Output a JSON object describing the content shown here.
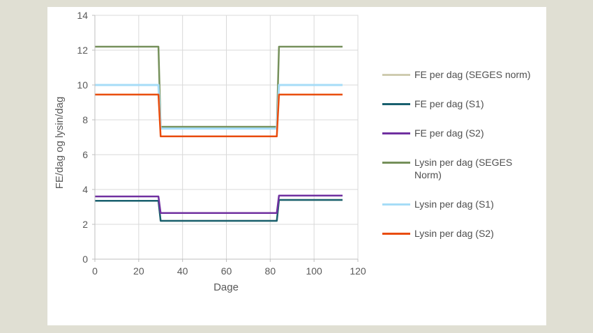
{
  "figure": {
    "background_color": "#e0dfd3",
    "panel_color": "#ffffff",
    "grid_color": "#d9d9d9",
    "axis_line_color": "#bfbfbf",
    "tick_text_color": "#595959",
    "legend_text_color": "#4f4f4f"
  },
  "chart_data": {
    "type": "line",
    "line_style": "step",
    "title": "",
    "xlabel": "Dage",
    "ylabel": "FE/dag og lysin/dag",
    "xlim": [
      0,
      120
    ],
    "ylim": [
      0,
      14
    ],
    "x_ticks": [
      0,
      20,
      40,
      60,
      80,
      100,
      120
    ],
    "y_ticks": [
      0,
      2,
      4,
      6,
      8,
      10,
      12,
      14
    ],
    "grid": true,
    "legend_position": "right",
    "x": [
      0,
      29,
      30,
      83,
      84,
      113
    ],
    "series": [
      {
        "name": "FE per dag (SEGES norm)",
        "color": "#cfccb0",
        "stroke_width": 2.5,
        "values": [
          3.35,
          3.35,
          2.2,
          2.2,
          3.4,
          3.4
        ],
        "note": "not visible in plot - coincides with and is drawn beneath FE per dag (S1)"
      },
      {
        "name": "FE per dag (S1)",
        "color": "#19606e",
        "stroke_width": 2.5,
        "values": [
          3.35,
          3.35,
          2.2,
          2.2,
          3.4,
          3.4
        ]
      },
      {
        "name": "FE per dag (S2)",
        "color": "#7030a0",
        "stroke_width": 2.5,
        "values": [
          3.6,
          3.6,
          2.65,
          2.65,
          3.65,
          3.65
        ]
      },
      {
        "name": "Lysin per dag (SEGES Norm)",
        "color": "#75905a",
        "stroke_width": 2.5,
        "values": [
          12.2,
          12.2,
          7.6,
          7.6,
          12.2,
          12.2
        ]
      },
      {
        "name": "Lysin per dag (S1)",
        "color": "#a6dcf7",
        "stroke_width": 3,
        "values": [
          10.0,
          10.0,
          7.5,
          7.5,
          10.0,
          10.0
        ]
      },
      {
        "name": "Lysin per dag (S2)",
        "color": "#e94c0c",
        "stroke_width": 2.5,
        "values": [
          9.45,
          9.45,
          7.05,
          7.05,
          9.45,
          9.45
        ]
      }
    ]
  }
}
